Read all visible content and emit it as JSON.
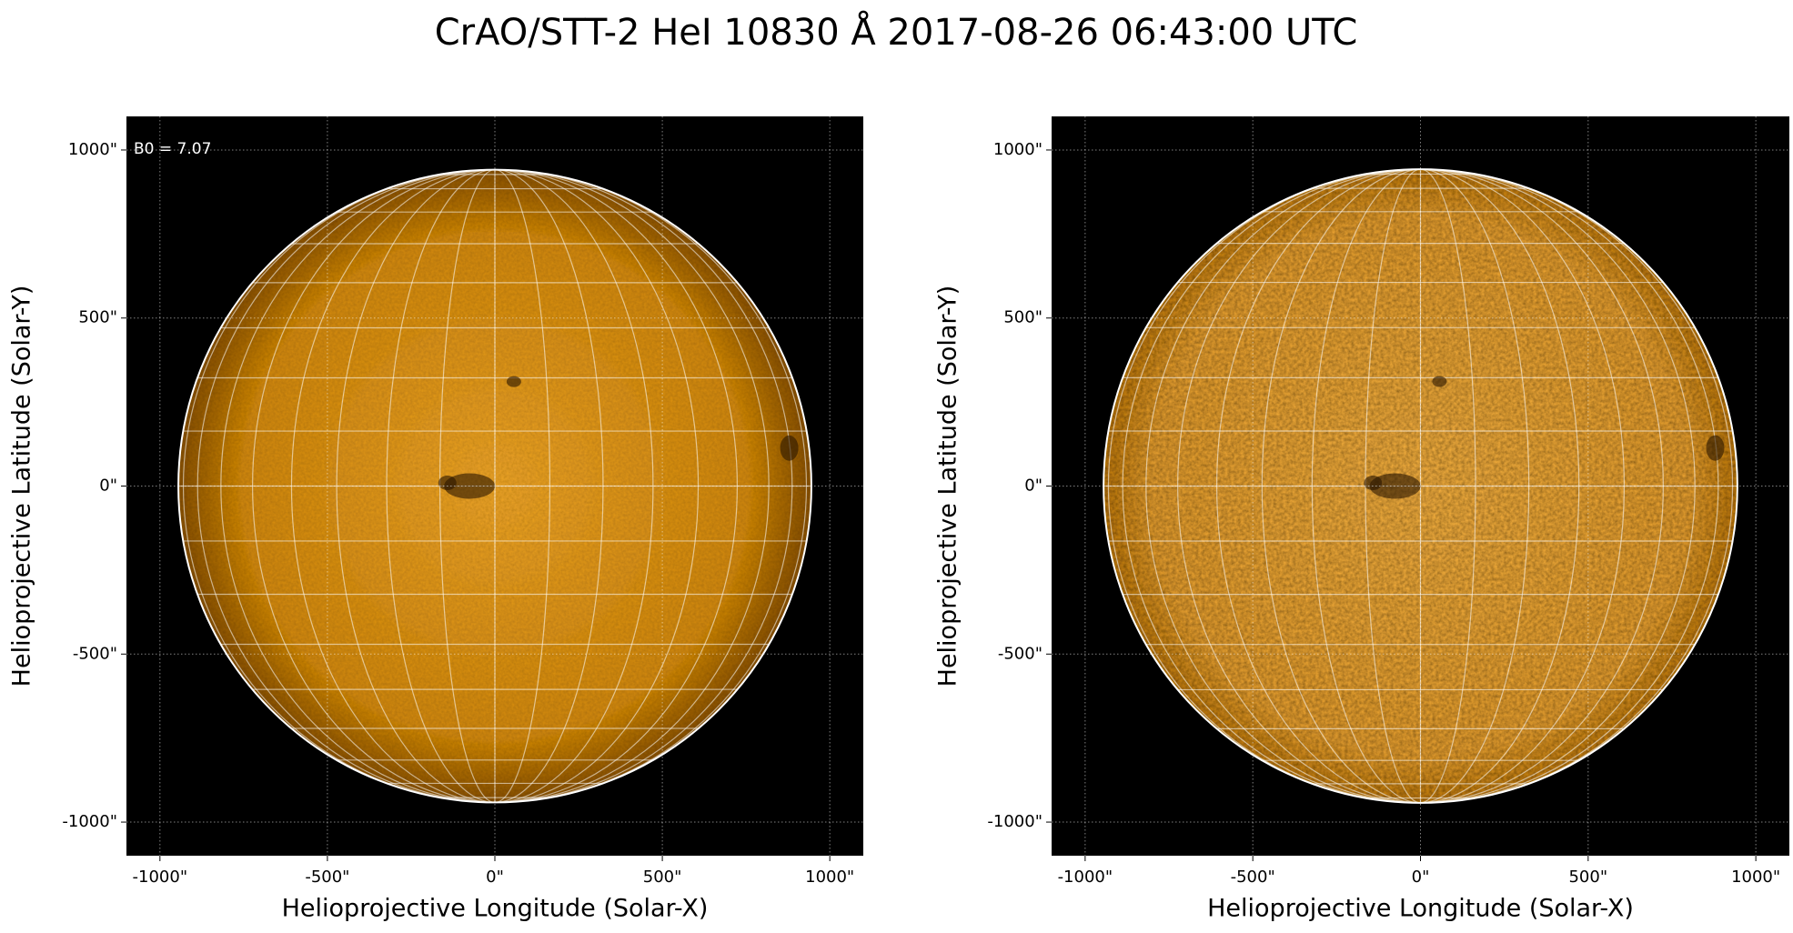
{
  "title": "CrAO/STT-2 HeI 10830 Å 2017-08-26 06:43:00 UTC",
  "chart_data": [
    {
      "type": "image",
      "xlabel": "Helioprojective Longitude (Solar-X)",
      "ylabel": "Helioprojective Latitude (Solar-Y)",
      "annotation": "B0 = 7.07",
      "xlim": [
        -1100,
        1100
      ],
      "ylim": [
        -1100,
        1100
      ],
      "xticks": [
        {
          "value": -1000,
          "label": "-1000\""
        },
        {
          "value": -500,
          "label": "-500\""
        },
        {
          "value": 0,
          "label": "0\""
        },
        {
          "value": 500,
          "label": "500\""
        },
        {
          "value": 1000,
          "label": "1000\""
        }
      ],
      "yticks": [
        {
          "value": -1000,
          "label": "-1000\""
        },
        {
          "value": -500,
          "label": "-500\""
        },
        {
          "value": 0,
          "label": "0\""
        },
        {
          "value": 500,
          "label": "500\""
        },
        {
          "value": 1000,
          "label": "1000\""
        }
      ],
      "grid": true,
      "disk_radius": 945,
      "color": "#e0961c"
    },
    {
      "type": "image",
      "xlabel": "Helioprojective Longitude (Solar-X)",
      "ylabel": "Helioprojective Latitude (Solar-Y)",
      "xlim": [
        -1100,
        1100
      ],
      "ylim": [
        -1100,
        1100
      ],
      "xticks": [
        {
          "value": -1000,
          "label": "-1000\""
        },
        {
          "value": -500,
          "label": "-500\""
        },
        {
          "value": 0,
          "label": "0\""
        },
        {
          "value": 500,
          "label": "500\""
        },
        {
          "value": 1000,
          "label": "1000\""
        }
      ],
      "yticks": [
        {
          "value": -1000,
          "label": "-1000\""
        },
        {
          "value": -500,
          "label": "-500\""
        },
        {
          "value": 0,
          "label": "0\""
        },
        {
          "value": 500,
          "label": "500\""
        },
        {
          "value": 1000,
          "label": "1000\""
        }
      ],
      "grid": true,
      "disk_radius": 945,
      "color": "#eaa230"
    }
  ]
}
